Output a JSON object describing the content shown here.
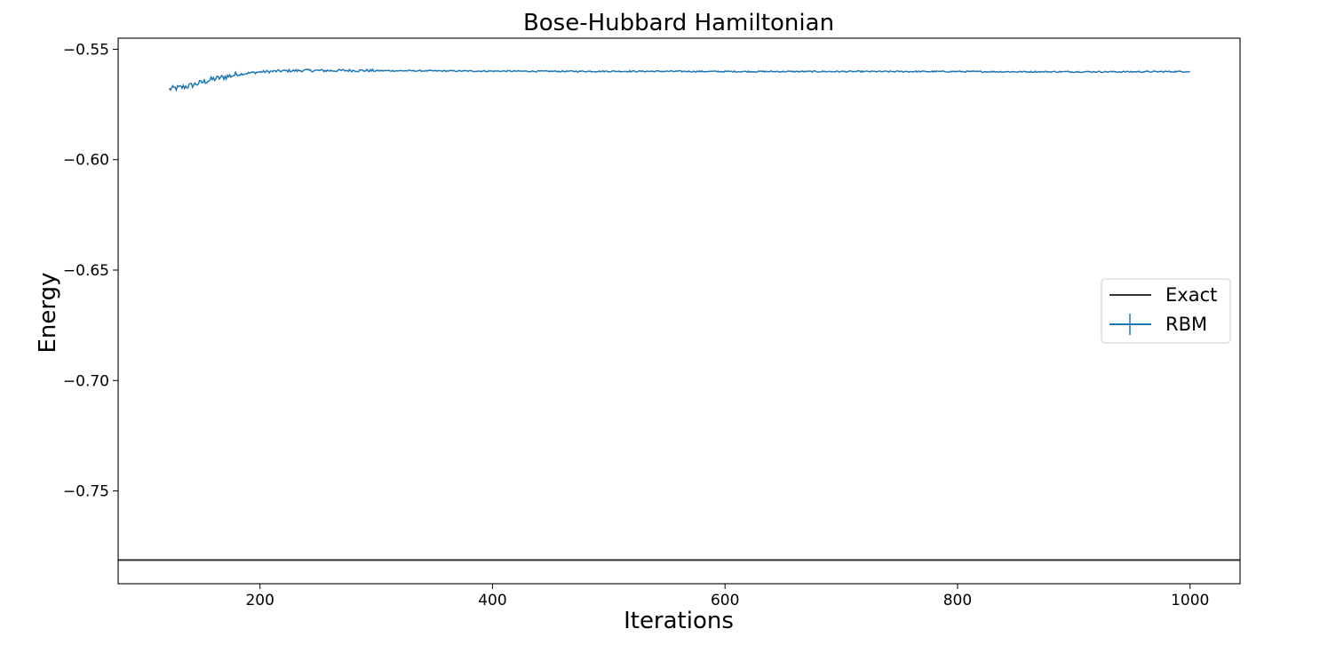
{
  "chart_data": {
    "type": "line",
    "title": "Bose-Hubbard Hamiltonian",
    "xlabel": "Iterations",
    "ylabel": "Energy",
    "xlim": [
      78,
      1043
    ],
    "ylim": [
      -0.792,
      -0.545
    ],
    "xticks": [
      200,
      400,
      600,
      800,
      1000
    ],
    "xtick_labels": [
      "200",
      "400",
      "600",
      "800",
      "1000"
    ],
    "yticks": [
      -0.55,
      -0.6,
      -0.65,
      -0.7,
      -0.75
    ],
    "ytick_labels": [
      "−0.55",
      "−0.60",
      "−0.65",
      "−0.70",
      "−0.75"
    ],
    "grid": false,
    "legend_position": "center-right",
    "series": [
      {
        "name": "Exact",
        "color": "#333333",
        "kind": "hline",
        "y": -0.7813
      },
      {
        "name": "RBM",
        "color": "#1f77b4",
        "kind": "line-errorbar",
        "x_start": 122,
        "x_end": 1000,
        "x": [
          122,
          130,
          140,
          150,
          160,
          170,
          180,
          190,
          200,
          220,
          240,
          260,
          280,
          300,
          350,
          400,
          450,
          500,
          550,
          600,
          650,
          700,
          750,
          800,
          850,
          900,
          950,
          1000
        ],
        "y": [
          -0.568,
          -0.5675,
          -0.5665,
          -0.565,
          -0.5635,
          -0.5625,
          -0.5615,
          -0.5608,
          -0.5603,
          -0.5598,
          -0.5596,
          -0.5597,
          -0.5596,
          -0.5597,
          -0.5598,
          -0.5599,
          -0.56,
          -0.56,
          -0.56,
          -0.5601,
          -0.5601,
          -0.5601,
          -0.5601,
          -0.5601,
          -0.5602,
          -0.5602,
          -0.5602,
          -0.5601
        ]
      }
    ]
  }
}
